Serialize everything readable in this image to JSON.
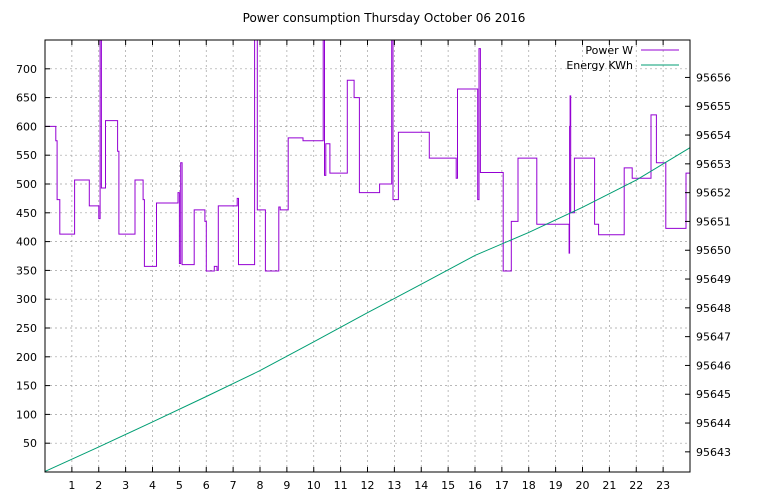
{
  "chart_data": {
    "type": "line",
    "title": "Power consumption Thursday October 06 2016",
    "xlabel": "",
    "ylabel": "",
    "y2label": "",
    "xlim": [
      0,
      24
    ],
    "ylim": [
      0,
      750
    ],
    "y2lim": [
      95642.3,
      95657.3
    ],
    "xticks": [
      1,
      2,
      3,
      4,
      5,
      6,
      7,
      8,
      9,
      10,
      11,
      12,
      13,
      14,
      15,
      16,
      17,
      18,
      19,
      20,
      21,
      22,
      23
    ],
    "yticks": [
      50,
      100,
      150,
      200,
      250,
      300,
      350,
      400,
      450,
      500,
      550,
      600,
      650,
      700
    ],
    "y2ticks": [
      95643,
      95644,
      95645,
      95646,
      95647,
      95648,
      95649,
      95650,
      95651,
      95652,
      95653,
      95654,
      95655,
      95656
    ],
    "grid": true,
    "legend_position": "top-right",
    "series": [
      {
        "name": "Power W",
        "axis": "y",
        "color": "#9400d3",
        "points": [
          [
            0,
            600
          ],
          [
            0.4,
            600
          ],
          [
            0.4,
            575
          ],
          [
            0.45,
            575
          ],
          [
            0.45,
            473
          ],
          [
            0.55,
            473
          ],
          [
            0.55,
            413
          ],
          [
            1.1,
            413
          ],
          [
            1.1,
            507
          ],
          [
            1.65,
            507
          ],
          [
            1.65,
            462
          ],
          [
            2.0,
            462
          ],
          [
            2.0,
            440
          ],
          [
            2.05,
            440
          ],
          [
            2.05,
            750
          ],
          [
            2.1,
            750
          ],
          [
            2.1,
            493
          ],
          [
            2.25,
            493
          ],
          [
            2.25,
            610
          ],
          [
            2.7,
            610
          ],
          [
            2.7,
            557
          ],
          [
            2.75,
            557
          ],
          [
            2.75,
            413
          ],
          [
            3.35,
            413
          ],
          [
            3.35,
            507
          ],
          [
            3.65,
            507
          ],
          [
            3.65,
            473
          ],
          [
            3.7,
            473
          ],
          [
            3.7,
            357
          ],
          [
            4.15,
            357
          ],
          [
            4.15,
            467
          ],
          [
            4.95,
            467
          ],
          [
            4.95,
            485
          ],
          [
            5.0,
            485
          ],
          [
            5.0,
            362
          ],
          [
            5.05,
            362
          ],
          [
            5.05,
            537
          ],
          [
            5.1,
            537
          ],
          [
            5.1,
            360
          ],
          [
            5.55,
            360
          ],
          [
            5.55,
            455
          ],
          [
            5.95,
            455
          ],
          [
            5.95,
            435
          ],
          [
            6.0,
            435
          ],
          [
            6.0,
            349
          ],
          [
            6.3,
            349
          ],
          [
            6.3,
            357
          ],
          [
            6.4,
            357
          ],
          [
            6.4,
            350
          ],
          [
            6.45,
            350
          ],
          [
            6.45,
            462
          ],
          [
            7.15,
            462
          ],
          [
            7.15,
            475
          ],
          [
            7.2,
            475
          ],
          [
            7.2,
            360
          ],
          [
            7.8,
            360
          ],
          [
            7.8,
            750
          ],
          [
            7.9,
            750
          ],
          [
            7.9,
            455
          ],
          [
            8.2,
            455
          ],
          [
            8.2,
            349
          ],
          [
            8.7,
            349
          ],
          [
            8.7,
            460
          ],
          [
            8.75,
            460
          ],
          [
            8.75,
            455
          ],
          [
            9.05,
            455
          ],
          [
            9.05,
            580
          ],
          [
            9.6,
            580
          ],
          [
            9.6,
            575
          ],
          [
            10.35,
            575
          ],
          [
            10.35,
            750
          ],
          [
            10.4,
            750
          ],
          [
            10.4,
            515
          ],
          [
            10.45,
            515
          ],
          [
            10.45,
            570
          ],
          [
            10.6,
            570
          ],
          [
            10.6,
            519
          ],
          [
            11.25,
            519
          ],
          [
            11.25,
            680
          ],
          [
            11.5,
            680
          ],
          [
            11.5,
            650
          ],
          [
            11.7,
            650
          ],
          [
            11.7,
            485
          ],
          [
            12.45,
            485
          ],
          [
            12.45,
            500
          ],
          [
            12.9,
            500
          ],
          [
            12.9,
            750
          ],
          [
            12.95,
            750
          ],
          [
            12.95,
            473
          ],
          [
            13.15,
            473
          ],
          [
            13.15,
            590
          ],
          [
            14.3,
            590
          ],
          [
            14.3,
            545
          ],
          [
            15.3,
            545
          ],
          [
            15.3,
            510
          ],
          [
            15.35,
            510
          ],
          [
            15.35,
            665
          ],
          [
            16.1,
            665
          ],
          [
            16.1,
            473
          ],
          [
            16.15,
            473
          ],
          [
            16.15,
            735
          ],
          [
            16.2,
            735
          ],
          [
            16.2,
            520
          ],
          [
            17.05,
            520
          ],
          [
            17.05,
            349
          ],
          [
            17.35,
            349
          ],
          [
            17.35,
            435
          ],
          [
            17.6,
            435
          ],
          [
            17.6,
            545
          ],
          [
            18.3,
            545
          ],
          [
            18.3,
            430
          ],
          [
            19.5,
            430
          ],
          [
            19.5,
            380
          ],
          [
            19.52,
            380
          ],
          [
            19.52,
            600
          ],
          [
            19.54,
            600
          ],
          [
            19.54,
            653
          ],
          [
            19.56,
            653
          ],
          [
            19.56,
            450
          ],
          [
            19.7,
            450
          ],
          [
            19.7,
            545
          ],
          [
            20.45,
            545
          ],
          [
            20.45,
            430
          ],
          [
            20.6,
            430
          ],
          [
            20.6,
            412
          ],
          [
            21.55,
            412
          ],
          [
            21.55,
            528
          ],
          [
            21.85,
            528
          ],
          [
            21.85,
            510
          ],
          [
            22.55,
            510
          ],
          [
            22.55,
            620
          ],
          [
            22.75,
            620
          ],
          [
            22.75,
            537
          ],
          [
            23.1,
            537
          ],
          [
            23.1,
            423
          ],
          [
            23.85,
            423
          ],
          [
            23.85,
            519
          ],
          [
            24,
            519
          ]
        ]
      },
      {
        "name": "Energy KWh",
        "axis": "y2",
        "color": "#009e73",
        "points": [
          [
            0,
            95642.32
          ],
          [
            2,
            95643.17
          ],
          [
            4,
            95644.04
          ],
          [
            6,
            95644.92
          ],
          [
            8,
            95645.82
          ],
          [
            10,
            95646.82
          ],
          [
            12,
            95647.83
          ],
          [
            14,
            95648.82
          ],
          [
            16,
            95649.82
          ],
          [
            18,
            95650.62
          ],
          [
            20,
            95651.49
          ],
          [
            22,
            95652.44
          ],
          [
            24,
            95653.56
          ]
        ]
      }
    ]
  }
}
